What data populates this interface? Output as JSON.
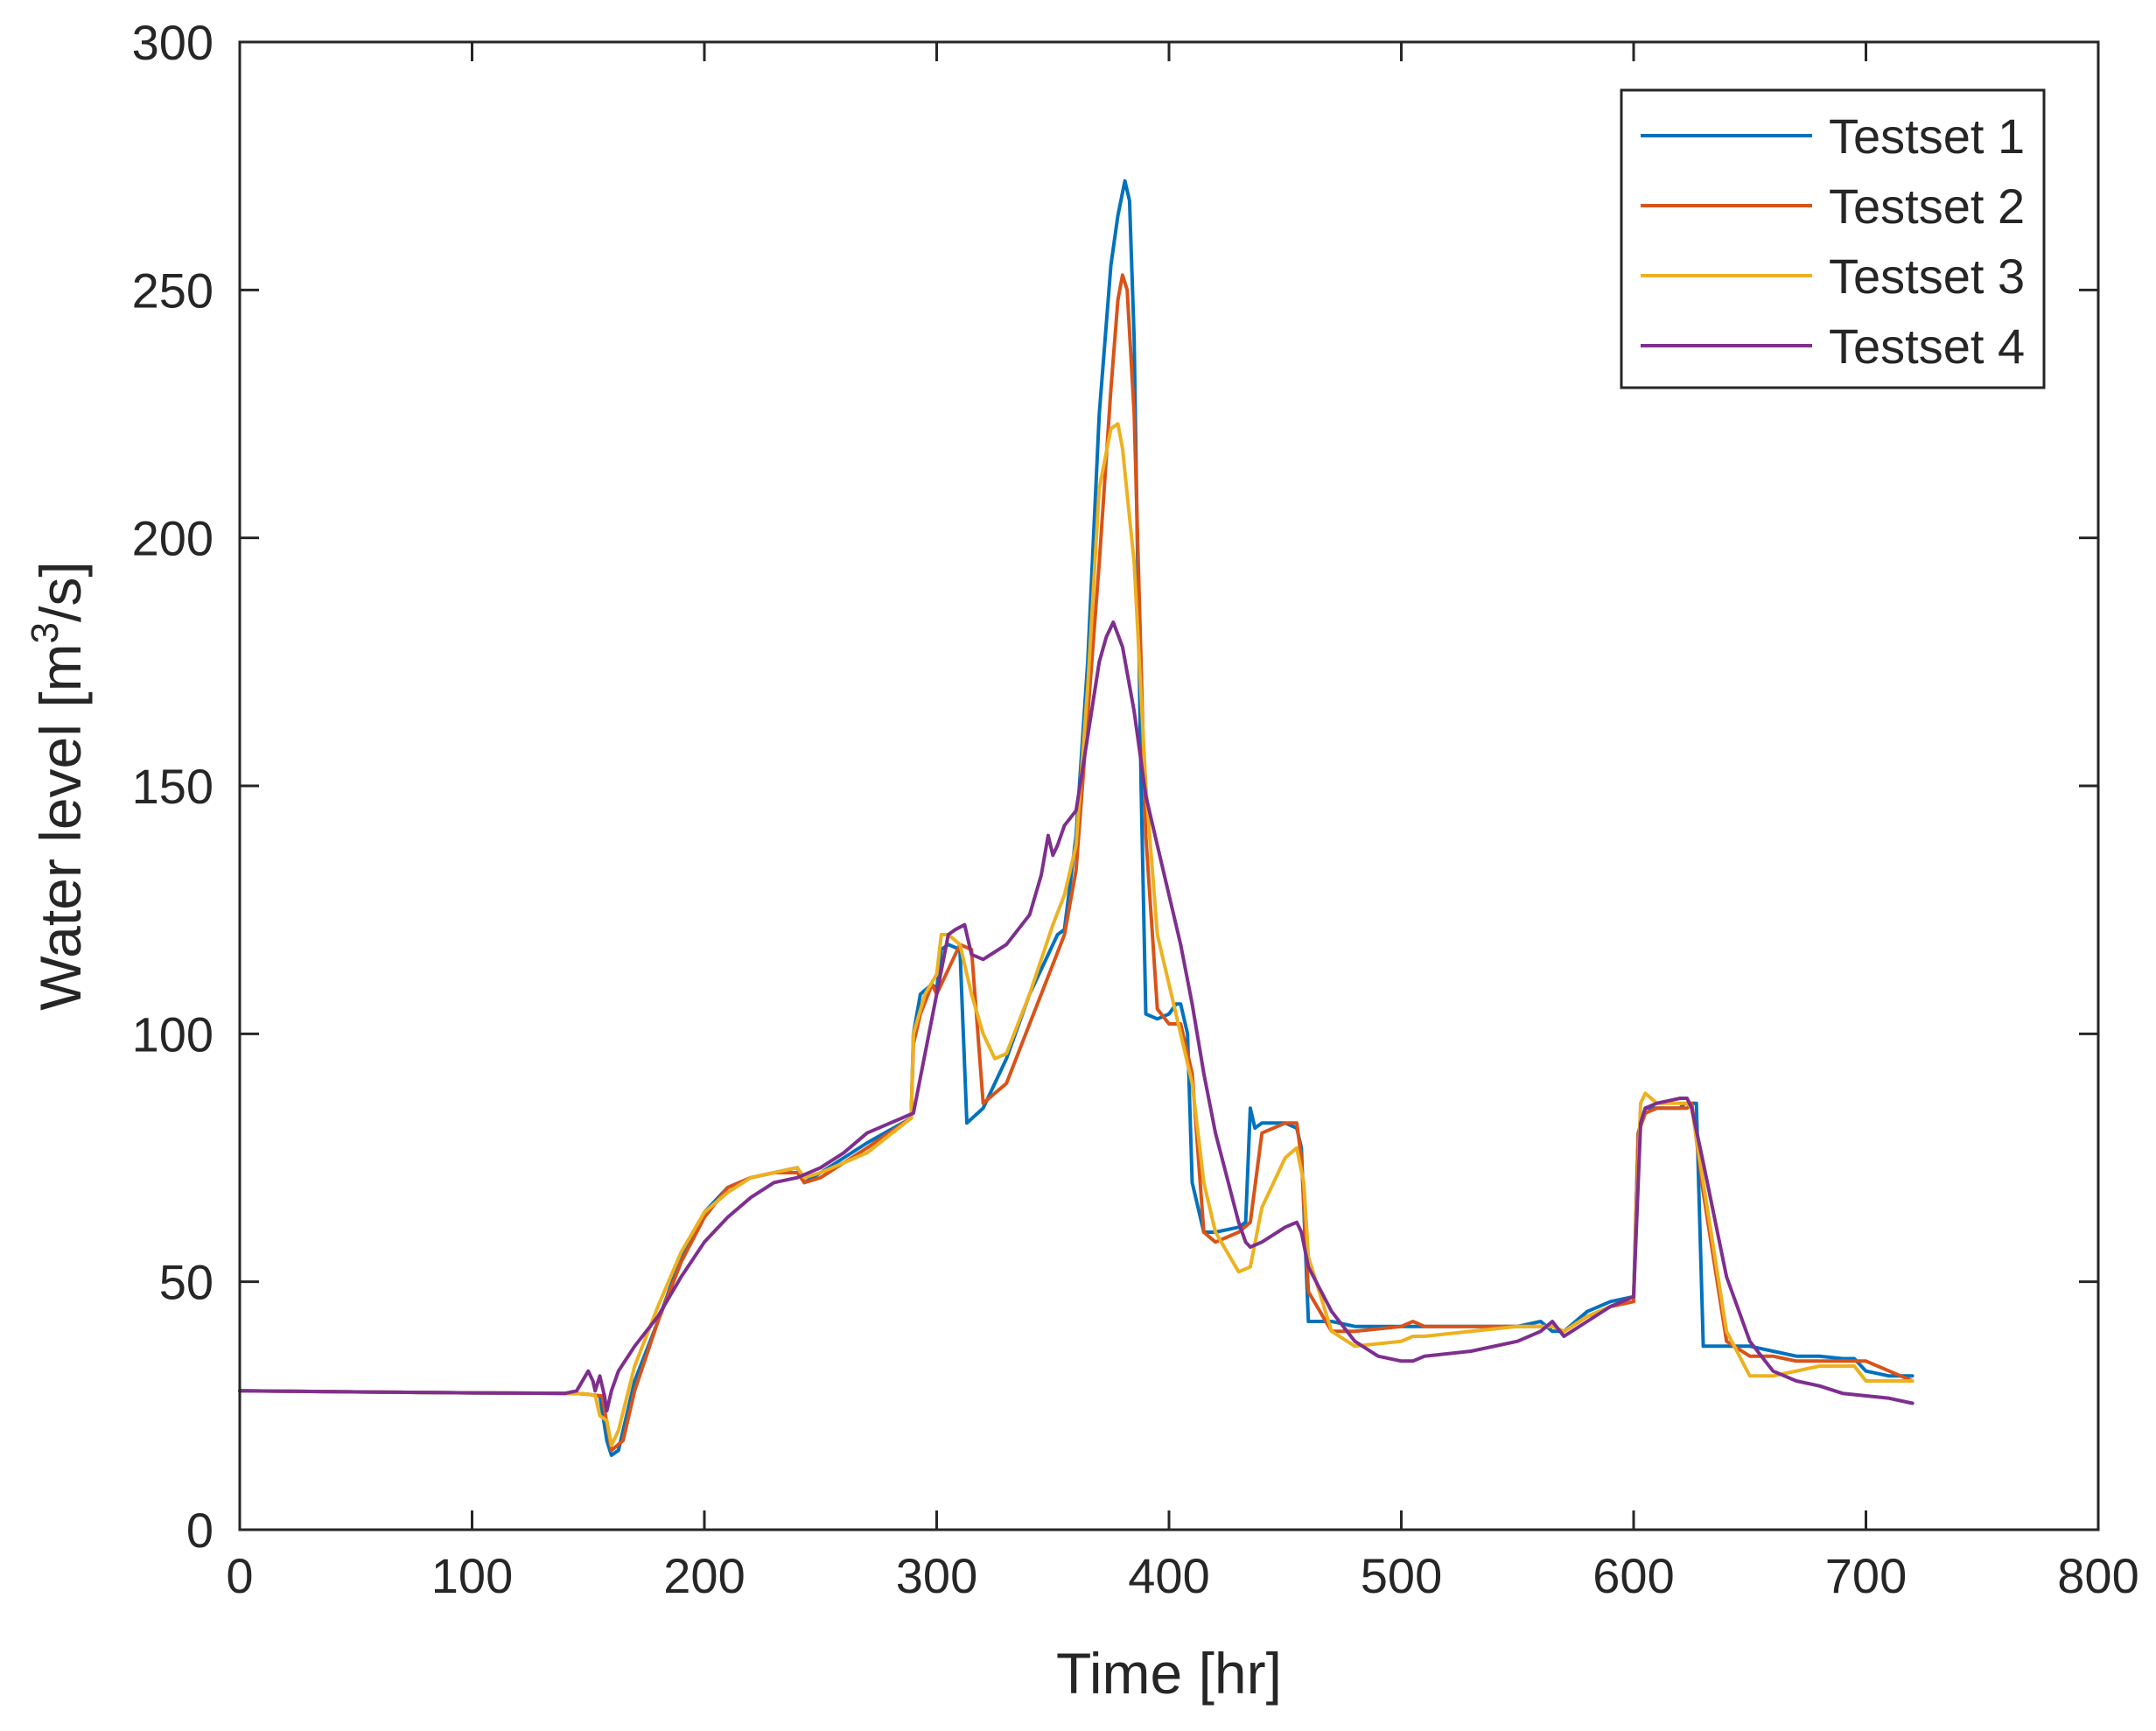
{
  "chart_data": {
    "type": "line",
    "xlabel": "Time [hr]",
    "ylabel_main": "Water level [m",
    "ylabel_sup": "3",
    "ylabel_tail": "/s]",
    "xlim": [
      0,
      800
    ],
    "ylim": [
      0,
      300
    ],
    "xticks": [
      0,
      100,
      200,
      300,
      400,
      500,
      600,
      700,
      800
    ],
    "yticks": [
      0,
      50,
      100,
      150,
      200,
      250,
      300
    ],
    "grid": false,
    "legend_position": "top-right",
    "series": [
      {
        "name": "Testset 1",
        "color": "#0072BD",
        "x": [
          0,
          50,
          100,
          145,
          150,
          155,
          158,
          160,
          163,
          170,
          180,
          190,
          200,
          210,
          220,
          230,
          240,
          243,
          250,
          270,
          289,
          290,
          293,
          298,
          300,
          302,
          305,
          310,
          313,
          320,
          330,
          340,
          350,
          352,
          355,
          360,
          365,
          370,
          375,
          378,
          381,
          383,
          385,
          388,
          390,
          395,
          400,
          403,
          405,
          408,
          410,
          415,
          420,
          430,
          433,
          435,
          437,
          440,
          450,
          455,
          457,
          460,
          470,
          480,
          490,
          500,
          505,
          510,
          530,
          550,
          560,
          565,
          570,
          580,
          590,
          600,
          602,
          605,
          610,
          620,
          622,
          625,
          627,
          630,
          650,
          660,
          670,
          680,
          690,
          695,
          700,
          710,
          720
        ],
        "y": [
          28,
          27.8,
          27.6,
          27.5,
          27.3,
          27,
          18,
          15,
          16,
          30,
          42,
          55,
          64,
          69,
          71,
          72,
          73,
          70,
          72,
          78,
          83,
          100,
          108,
          110,
          109,
          117,
          118,
          117,
          82,
          85,
          95,
          108,
          118,
          120,
          121,
          140,
          175,
          225,
          255,
          265,
          272,
          268,
          240,
          150,
          104,
          103,
          104,
          106,
          106,
          100,
          70,
          60,
          60,
          61,
          62,
          85,
          81,
          82,
          82,
          81,
          77,
          42,
          42,
          41,
          41,
          41,
          41,
          41,
          41,
          41,
          42,
          40,
          40,
          44,
          46,
          47,
          80,
          85,
          85,
          85,
          86,
          86,
          86,
          37,
          37,
          36,
          35,
          35,
          34.5,
          34.5,
          32,
          31,
          31
        ]
      },
      {
        "name": "Testset 2",
        "color": "#D95319",
        "x": [
          0,
          50,
          100,
          145,
          150,
          155,
          156,
          160,
          165,
          170,
          180,
          190,
          200,
          210,
          220,
          230,
          240,
          243,
          250,
          270,
          289,
          290,
          293,
          298,
          300,
          305,
          310,
          315,
          320,
          330,
          340,
          350,
          355,
          360,
          370,
          375,
          378,
          380,
          382,
          385,
          390,
          395,
          400,
          405,
          410,
          415,
          420,
          430,
          435,
          440,
          450,
          455,
          457,
          460,
          470,
          480,
          500,
          505,
          510,
          530,
          550,
          565,
          570,
          580,
          590,
          600,
          602,
          605,
          610,
          620,
          623,
          625,
          630,
          640,
          650,
          660,
          670,
          680,
          690,
          700,
          720
        ],
        "y": [
          28,
          27.8,
          27.6,
          27.5,
          27.3,
          27,
          27,
          16,
          18,
          28,
          42,
          54,
          63,
          69,
          71,
          72,
          72,
          70,
          71,
          77,
          83,
          98,
          104,
          110,
          108,
          113,
          118,
          117,
          86,
          90,
          102,
          114,
          120,
          133,
          195,
          230,
          248,
          253,
          250,
          225,
          140,
          105,
          102,
          102,
          92,
          60,
          58,
          60,
          62,
          80,
          82,
          82,
          75,
          48,
          40,
          40,
          41,
          42,
          41,
          41,
          41,
          41,
          40,
          43,
          45,
          46,
          80,
          84,
          85,
          85,
          85,
          86,
          68,
          38,
          35,
          35,
          34,
          34,
          34,
          34,
          30
        ]
      },
      {
        "name": "Testset 3",
        "color": "#EDB120",
        "x": [
          0,
          50,
          100,
          145,
          150,
          153,
          155,
          158,
          160,
          163,
          170,
          180,
          190,
          200,
          210,
          220,
          230,
          240,
          243,
          250,
          270,
          289,
          290,
          295,
          300,
          302,
          305,
          310,
          315,
          320,
          325,
          330,
          340,
          350,
          355,
          360,
          365,
          370,
          375,
          378,
          380,
          385,
          390,
          395,
          400,
          405,
          410,
          415,
          420,
          425,
          430,
          435,
          440,
          450,
          455,
          458,
          460,
          470,
          480,
          500,
          505,
          510,
          530,
          550,
          565,
          570,
          580,
          590,
          600,
          603,
          605,
          610,
          620,
          623,
          625,
          630,
          640,
          650,
          660,
          670,
          680,
          695,
          700,
          720
        ],
        "y": [
          28,
          27.8,
          27.6,
          27.5,
          27.3,
          27.1,
          23,
          22,
          17,
          20,
          33,
          45,
          56,
          64,
          68,
          71,
          72,
          73,
          71,
          72,
          76,
          83,
          100,
          108,
          112,
          120,
          120,
          118,
          108,
          100,
          95,
          96,
          108,
          122,
          128,
          138,
          170,
          210,
          222,
          223,
          218,
          195,
          150,
          120,
          110,
          100,
          90,
          70,
          60,
          56,
          52,
          53,
          65,
          75,
          77,
          70,
          55,
          40,
          37,
          38,
          39,
          39,
          40,
          41,
          41,
          40,
          43,
          45,
          47,
          86,
          88,
          86,
          86,
          86,
          85,
          70,
          40,
          31,
          31,
          32,
          33,
          33,
          30,
          30
        ]
      },
      {
        "name": "Testset 4",
        "color": "#7E2F8E",
        "x": [
          0,
          50,
          100,
          140,
          145,
          150,
          152,
          153,
          155,
          157,
          158,
          160,
          163,
          170,
          180,
          190,
          200,
          210,
          220,
          230,
          240,
          250,
          260,
          270,
          280,
          290,
          300,
          305,
          308,
          312,
          315,
          320,
          330,
          340,
          345,
          348,
          350,
          352,
          355,
          360,
          365,
          370,
          373,
          376,
          380,
          385,
          390,
          395,
          400,
          405,
          410,
          415,
          420,
          430,
          433,
          435,
          440,
          450,
          455,
          457,
          460,
          470,
          480,
          490,
          500,
          505,
          510,
          530,
          550,
          560,
          565,
          570,
          580,
          590,
          600,
          603,
          605,
          610,
          620,
          623,
          625,
          630,
          640,
          650,
          660,
          670,
          680,
          690,
          700,
          710,
          720
        ],
        "y": [
          28,
          27.8,
          27.6,
          27.5,
          28,
          32,
          30,
          28,
          31,
          27,
          24,
          28,
          32,
          37,
          43,
          51,
          58,
          63,
          67,
          70,
          71,
          73,
          76,
          80,
          82,
          84,
          108,
          120,
          121,
          122,
          116,
          115,
          118,
          124,
          132,
          140,
          136,
          138,
          142,
          145,
          160,
          175,
          180,
          183,
          178,
          165,
          148,
          138,
          128,
          118,
          106,
          92,
          80,
          62,
          58,
          57,
          58,
          61,
          62,
          60,
          53,
          44,
          38,
          35,
          34,
          34,
          35,
          36,
          38,
          40,
          42,
          39,
          42,
          45,
          47,
          82,
          85,
          86,
          87,
          87,
          85,
          74,
          51,
          38,
          32,
          30,
          29,
          27.5,
          27,
          26.5,
          25.5
        ]
      }
    ]
  }
}
